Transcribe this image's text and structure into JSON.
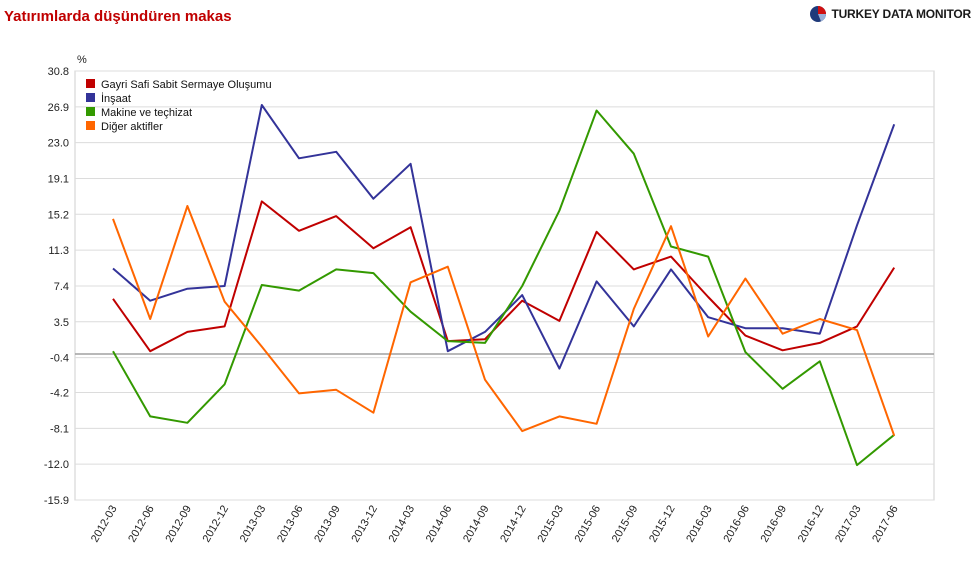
{
  "header": {
    "title": "Yatırımlarda düşündüren makas",
    "brand": "TURKEY DATA MONITOR",
    "brand_icon": "pie-chart-logo-icon"
  },
  "chart_data": {
    "type": "line",
    "ylabel": "%",
    "ylim": [
      -15.9,
      30.8
    ],
    "yticks": [
      30.8,
      26.9,
      23.0,
      19.1,
      15.2,
      11.3,
      7.4,
      3.5,
      -0.4,
      -4.2,
      -8.1,
      -12.0,
      -15.9
    ],
    "ytick_labels": [
      "30.8",
      "26.9",
      "23.0",
      "19.1",
      "15.2",
      "11.3",
      "7.4",
      "3.5",
      "-0.4",
      "-4.2",
      "-8.1",
      "-12.0",
      "-15.9"
    ],
    "zero_line": 0,
    "grid": true,
    "legend": "top-left",
    "categories": [
      "2012-03",
      "2012-06",
      "2012-09",
      "2012-12",
      "2013-03",
      "2013-06",
      "2013-09",
      "2013-12",
      "2014-03",
      "2014-06",
      "2014-09",
      "2014-12",
      "2015-03",
      "2015-06",
      "2015-09",
      "2015-12",
      "2016-03",
      "2016-06",
      "2016-09",
      "2016-12",
      "2017-03",
      "2017-06"
    ],
    "series": [
      {
        "name": "Gayri Safi Sabit Sermaye Oluşumu",
        "color": "#c00000",
        "values": [
          6.0,
          0.3,
          2.4,
          3.0,
          16.6,
          13.4,
          15.0,
          11.5,
          13.8,
          1.4,
          1.6,
          5.8,
          3.6,
          13.3,
          9.2,
          10.6,
          6.2,
          2.0,
          0.4,
          1.2,
          3.0,
          9.4
        ]
      },
      {
        "name": "İnşaat",
        "color": "#333399",
        "values": [
          9.3,
          5.8,
          7.1,
          7.4,
          27.1,
          21.3,
          22.0,
          16.9,
          20.7,
          0.3,
          2.4,
          6.4,
          -1.6,
          7.9,
          3.0,
          9.2,
          4.0,
          2.8,
          2.8,
          2.2,
          14.0,
          25.0
        ]
      },
      {
        "name": "Makine ve teçhizat",
        "color": "#339900",
        "values": [
          0.3,
          -6.8,
          -7.5,
          -3.3,
          7.5,
          6.9,
          9.2,
          8.8,
          4.6,
          1.4,
          1.2,
          7.4,
          15.6,
          26.5,
          21.8,
          11.7,
          10.6,
          0.2,
          -3.8,
          -0.8,
          -12.1,
          -8.8
        ]
      },
      {
        "name": "Diğer aktifler",
        "color": "#ff6600",
        "values": [
          14.7,
          3.8,
          16.1,
          5.7,
          0.8,
          -4.3,
          -3.9,
          -6.4,
          7.8,
          9.5,
          -2.8,
          -8.4,
          -6.8,
          -7.6,
          4.9,
          13.9,
          1.9,
          8.2,
          2.2,
          3.8,
          2.6,
          -8.9
        ]
      }
    ]
  }
}
